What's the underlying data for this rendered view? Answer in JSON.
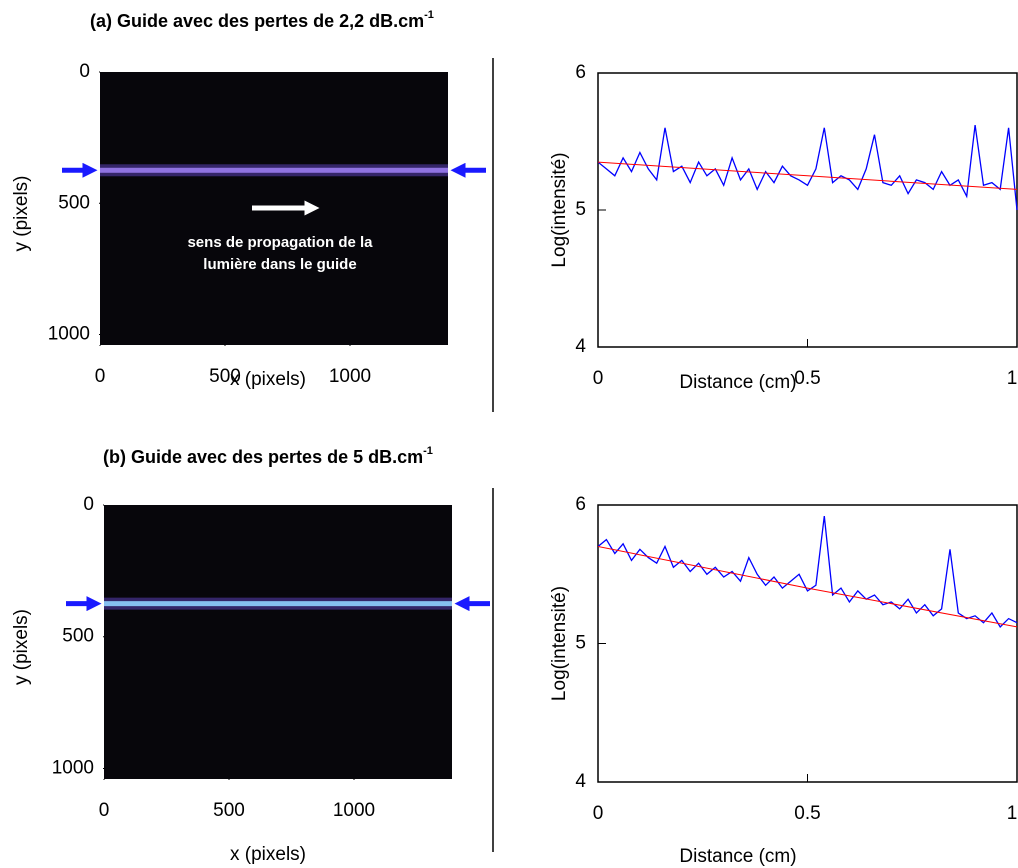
{
  "chart_data": [
    {
      "type": "image",
      "title": "(a) Guide avec des pertes de 2,2 dB.cm",
      "title_superscript": "-1",
      "xlabel": "x (pixels)",
      "ylabel": "y (pixels)",
      "xlim": [
        0,
        1392
      ],
      "ylim": [
        0,
        1040
      ],
      "xticks": [
        0,
        500,
        1000
      ],
      "yticks": [
        0,
        500,
        1000
      ],
      "annotation": [
        "sens de propagation de la",
        "lumière dans le guide"
      ]
    },
    {
      "type": "line",
      "xlabel": "Distance (cm)",
      "ylabel": "Log(intensité)",
      "xlim": [
        0,
        1
      ],
      "ylim": [
        4,
        6
      ],
      "xticks": [
        0,
        0.5,
        1
      ],
      "yticks": [
        4,
        5,
        6
      ],
      "series": [
        {
          "color": "#0000ff",
          "x": [
            0,
            0.02,
            0.04,
            0.06,
            0.08,
            0.1,
            0.12,
            0.14,
            0.16,
            0.18,
            0.2,
            0.22,
            0.24,
            0.26,
            0.28,
            0.3,
            0.32,
            0.34,
            0.36,
            0.38,
            0.4,
            0.42,
            0.44,
            0.46,
            0.48,
            0.5,
            0.52,
            0.54,
            0.56,
            0.58,
            0.6,
            0.62,
            0.64,
            0.66,
            0.68,
            0.7,
            0.72,
            0.74,
            0.76,
            0.78,
            0.8,
            0.82,
            0.84,
            0.86,
            0.88,
            0.9,
            0.92,
            0.94,
            0.96,
            0.98,
            1
          ],
          "values": [
            5.35,
            5.3,
            5.25,
            5.38,
            5.28,
            5.42,
            5.3,
            5.22,
            5.6,
            5.28,
            5.32,
            5.2,
            5.35,
            5.25,
            5.3,
            5.18,
            5.38,
            5.22,
            5.3,
            5.15,
            5.28,
            5.2,
            5.32,
            5.25,
            5.22,
            5.18,
            5.3,
            5.6,
            5.2,
            5.25,
            5.22,
            5.15,
            5.3,
            5.55,
            5.2,
            5.18,
            5.25,
            5.12,
            5.22,
            5.2,
            5.15,
            5.28,
            5.18,
            5.22,
            5.1,
            5.62,
            5.18,
            5.2,
            5.15,
            5.6,
            5.0
          ]
        },
        {
          "color": "#ff0000",
          "x": [
            0,
            0.5,
            1
          ],
          "values": [
            5.35,
            5.25,
            5.15
          ]
        }
      ]
    },
    {
      "type": "image",
      "title": "(b) Guide avec des pertes de 5 dB.cm",
      "title_superscript": "-1",
      "xlabel": "x (pixels)",
      "ylabel": "y (pixels)",
      "xlim": [
        0,
        1392
      ],
      "ylim": [
        0,
        1040
      ],
      "xticks": [
        0,
        500,
        1000
      ],
      "yticks": [
        0,
        500,
        1000
      ]
    },
    {
      "type": "line",
      "xlabel": "Distance (cm)",
      "ylabel": "Log(intensité)",
      "xlim": [
        0,
        1
      ],
      "ylim": [
        4,
        6
      ],
      "xticks": [
        0,
        0.5,
        1
      ],
      "yticks": [
        4,
        5,
        6
      ],
      "series": [
        {
          "color": "#0000ff",
          "x": [
            0,
            0.02,
            0.04,
            0.06,
            0.08,
            0.1,
            0.12,
            0.14,
            0.16,
            0.18,
            0.2,
            0.22,
            0.24,
            0.26,
            0.28,
            0.3,
            0.32,
            0.34,
            0.36,
            0.38,
            0.4,
            0.42,
            0.44,
            0.46,
            0.48,
            0.5,
            0.52,
            0.54,
            0.56,
            0.58,
            0.6,
            0.62,
            0.64,
            0.66,
            0.68,
            0.7,
            0.72,
            0.74,
            0.76,
            0.78,
            0.8,
            0.82,
            0.84,
            0.86,
            0.88,
            0.9,
            0.92,
            0.94,
            0.96,
            0.98,
            1
          ],
          "values": [
            5.7,
            5.75,
            5.65,
            5.72,
            5.6,
            5.68,
            5.62,
            5.58,
            5.7,
            5.55,
            5.6,
            5.52,
            5.58,
            5.5,
            5.55,
            5.48,
            5.52,
            5.45,
            5.62,
            5.5,
            5.42,
            5.48,
            5.4,
            5.45,
            5.5,
            5.38,
            5.42,
            5.92,
            5.35,
            5.4,
            5.3,
            5.38,
            5.32,
            5.35,
            5.28,
            5.3,
            5.25,
            5.32,
            5.22,
            5.28,
            5.2,
            5.25,
            5.68,
            5.22,
            5.18,
            5.2,
            5.15,
            5.22,
            5.12,
            5.18,
            5.15
          ]
        },
        {
          "color": "#ff0000",
          "x": [
            0,
            0.5,
            1
          ],
          "values": [
            5.7,
            5.4,
            5.12
          ]
        }
      ]
    }
  ]
}
